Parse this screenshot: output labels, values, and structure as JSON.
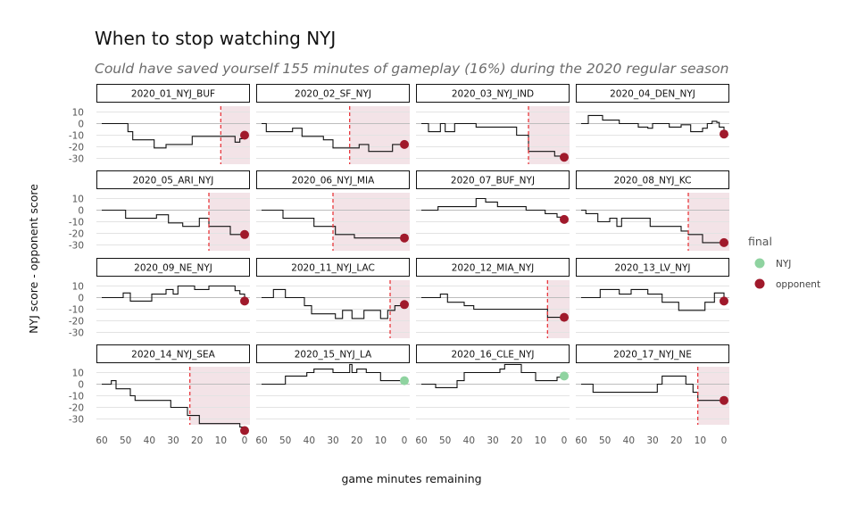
{
  "chart_data": {
    "type": "line",
    "title": "When to stop watching NYJ",
    "subtitle": "Could have saved yourself 155 minutes of gameplay (16%) during the 2020 regular season",
    "xlabel": "game minutes remaining",
    "ylabel": "NYJ score - opponent score",
    "xlim": [
      60,
      0
    ],
    "ylim": [
      -35,
      15
    ],
    "x_ticks": [
      60,
      50,
      40,
      30,
      20,
      10,
      0
    ],
    "x_tick_labels": [
      "60",
      "50",
      "40",
      "30",
      "20",
      "10",
      "0"
    ],
    "y_ticks": [
      10,
      0,
      -10,
      -20,
      -30
    ],
    "y_tick_labels": [
      "10",
      "0",
      "-10",
      "-20",
      "-30"
    ],
    "grid": true,
    "legend": {
      "title": "final",
      "position": "right",
      "entries": [
        {
          "label": "NYJ",
          "color": "#8fd3a0"
        },
        {
          "label": "opponent",
          "color": "#a0192b"
        }
      ]
    },
    "colors": {
      "line": "#111111",
      "cutoff_line": "#e8383d",
      "shade": "#f3e3e7",
      "nyj": "#8fd3a0",
      "opponent": "#a0192b"
    },
    "panels": [
      {
        "label": "2020_01_NYJ_BUF",
        "final": "opponent",
        "cutoff": 10,
        "steps": [
          [
            60,
            0
          ],
          [
            51,
            0
          ],
          [
            49,
            -7
          ],
          [
            47,
            -14
          ],
          [
            38,
            -21
          ],
          [
            33,
            -18
          ],
          [
            23,
            -18
          ],
          [
            22,
            -11
          ],
          [
            11,
            -11
          ],
          [
            5,
            -11
          ],
          [
            4,
            -16
          ],
          [
            2,
            -13
          ],
          [
            0,
            -10
          ]
        ]
      },
      {
        "label": "2020_02_SF_NYJ",
        "final": "opponent",
        "cutoff": 23,
        "steps": [
          [
            60,
            0
          ],
          [
            58,
            -7
          ],
          [
            47,
            -4
          ],
          [
            43,
            -11
          ],
          [
            34,
            -14
          ],
          [
            30,
            -21
          ],
          [
            23,
            -21
          ],
          [
            19,
            -18
          ],
          [
            15,
            -24
          ],
          [
            8,
            -24
          ],
          [
            5,
            -18
          ],
          [
            0,
            -18
          ]
        ]
      },
      {
        "label": "2020_03_NYJ_IND",
        "final": "opponent",
        "cutoff": 15,
        "steps": [
          [
            60,
            0
          ],
          [
            57,
            -7
          ],
          [
            52,
            0
          ],
          [
            50,
            -7
          ],
          [
            47,
            -7
          ],
          [
            46,
            0
          ],
          [
            37,
            -3
          ],
          [
            33,
            -3
          ],
          [
            30,
            -3
          ],
          [
            22,
            -3
          ],
          [
            20,
            -10
          ],
          [
            16,
            -10
          ],
          [
            15,
            -24
          ],
          [
            7,
            -24
          ],
          [
            4,
            -28
          ],
          [
            0,
            -29
          ]
        ]
      },
      {
        "label": "2020_04_DEN_NYJ",
        "final": "opponent",
        "cutoff": null,
        "steps": [
          [
            60,
            0
          ],
          [
            57,
            7
          ],
          [
            51,
            3
          ],
          [
            46,
            3
          ],
          [
            44,
            0
          ],
          [
            36,
            -3
          ],
          [
            34,
            -3
          ],
          [
            32,
            -4
          ],
          [
            30,
            0
          ],
          [
            23,
            -3
          ],
          [
            20,
            -3
          ],
          [
            18,
            -1
          ],
          [
            14,
            -7
          ],
          [
            11,
            -7
          ],
          [
            9,
            -4
          ],
          [
            7,
            0
          ],
          [
            5,
            2
          ],
          [
            3,
            1
          ],
          [
            2,
            -3
          ],
          [
            0,
            -9
          ]
        ]
      },
      {
        "label": "2020_05_ARI_NYJ",
        "final": "opponent",
        "cutoff": 15,
        "steps": [
          [
            60,
            0
          ],
          [
            52,
            0
          ],
          [
            50,
            -7
          ],
          [
            37,
            -4
          ],
          [
            34,
            -4
          ],
          [
            32,
            -11
          ],
          [
            26,
            -14
          ],
          [
            20,
            -14
          ],
          [
            19,
            -7
          ],
          [
            17,
            -7
          ],
          [
            15,
            -14
          ],
          [
            10,
            -14
          ],
          [
            6,
            -21
          ],
          [
            0,
            -21
          ]
        ]
      },
      {
        "label": "2020_06_NYJ_MIA",
        "final": "opponent",
        "cutoff": 30,
        "steps": [
          [
            60,
            0
          ],
          [
            53,
            0
          ],
          [
            51,
            -7
          ],
          [
            40,
            -7
          ],
          [
            38,
            -14
          ],
          [
            30,
            -14
          ],
          [
            29,
            -21
          ],
          [
            22,
            -21
          ],
          [
            21,
            -24
          ],
          [
            0,
            -24
          ]
        ]
      },
      {
        "label": "2020_07_BUF_NYJ",
        "final": "opponent",
        "cutoff": null,
        "steps": [
          [
            60,
            0
          ],
          [
            55,
            0
          ],
          [
            53,
            3
          ],
          [
            38,
            3
          ],
          [
            37,
            10
          ],
          [
            34,
            10
          ],
          [
            33,
            7
          ],
          [
            30,
            7
          ],
          [
            28,
            3
          ],
          [
            22,
            3
          ],
          [
            18,
            3
          ],
          [
            16,
            0
          ],
          [
            10,
            0
          ],
          [
            8,
            -3
          ],
          [
            5,
            -3
          ],
          [
            3,
            -6
          ],
          [
            0,
            -8
          ]
        ]
      },
      {
        "label": "2020_08_NYJ_KC",
        "final": "opponent",
        "cutoff": 15,
        "steps": [
          [
            60,
            0
          ],
          [
            58,
            -3
          ],
          [
            55,
            -3
          ],
          [
            53,
            -10
          ],
          [
            49,
            -10
          ],
          [
            48,
            -7
          ],
          [
            45,
            -14
          ],
          [
            43,
            -7
          ],
          [
            33,
            -7
          ],
          [
            31,
            -14
          ],
          [
            23,
            -14
          ],
          [
            18,
            -18
          ],
          [
            15,
            -21
          ],
          [
            11,
            -21
          ],
          [
            9,
            -28
          ],
          [
            0,
            -28
          ]
        ]
      },
      {
        "label": "2020_09_NE_NYJ",
        "final": "opponent",
        "cutoff": null,
        "steps": [
          [
            60,
            0
          ],
          [
            53,
            0
          ],
          [
            51,
            4
          ],
          [
            49,
            4
          ],
          [
            48,
            -3
          ],
          [
            41,
            -3
          ],
          [
            39,
            3
          ],
          [
            34,
            3
          ],
          [
            33,
            7
          ],
          [
            31,
            7
          ],
          [
            30,
            3
          ],
          [
            28,
            10
          ],
          [
            23,
            10
          ],
          [
            21,
            7
          ],
          [
            16,
            7
          ],
          [
            15,
            10
          ],
          [
            6,
            10
          ],
          [
            4,
            6
          ],
          [
            2,
            3
          ],
          [
            0,
            -3
          ]
        ]
      },
      {
        "label": "2020_11_NYJ_LAC",
        "final": "opponent",
        "cutoff": 6,
        "steps": [
          [
            60,
            0
          ],
          [
            55,
            7
          ],
          [
            52,
            7
          ],
          [
            50,
            0
          ],
          [
            44,
            0
          ],
          [
            42,
            -7
          ],
          [
            41,
            -7
          ],
          [
            39,
            -14
          ],
          [
            31,
            -14
          ],
          [
            29,
            -18
          ],
          [
            27,
            -18
          ],
          [
            26,
            -11
          ],
          [
            23,
            -11
          ],
          [
            22,
            -18
          ],
          [
            18,
            -18
          ],
          [
            17,
            -11
          ],
          [
            11,
            -11
          ],
          [
            10,
            -18
          ],
          [
            8,
            -18
          ],
          [
            7,
            -11
          ],
          [
            5,
            -11
          ],
          [
            4,
            -7
          ],
          [
            0,
            -6
          ]
        ]
      },
      {
        "label": "2020_12_MIA_NYJ",
        "final": "opponent",
        "cutoff": 7,
        "steps": [
          [
            60,
            0
          ],
          [
            53,
            0
          ],
          [
            52,
            3
          ],
          [
            50,
            3
          ],
          [
            49,
            -4
          ],
          [
            44,
            -4
          ],
          [
            42,
            -7
          ],
          [
            38,
            -10
          ],
          [
            31,
            -10
          ],
          [
            28,
            -10
          ],
          [
            18,
            -10
          ],
          [
            15,
            -10
          ],
          [
            8,
            -10
          ],
          [
            7,
            -17
          ],
          [
            0,
            -17
          ]
        ]
      },
      {
        "label": "2020_13_LV_NYJ",
        "final": "opponent",
        "cutoff": null,
        "steps": [
          [
            60,
            0
          ],
          [
            54,
            0
          ],
          [
            52,
            7
          ],
          [
            45,
            7
          ],
          [
            44,
            3
          ],
          [
            40,
            3
          ],
          [
            39,
            7
          ],
          [
            33,
            7
          ],
          [
            32,
            3
          ],
          [
            27,
            3
          ],
          [
            26,
            -4
          ],
          [
            20,
            -4
          ],
          [
            19,
            -11
          ],
          [
            9,
            -11
          ],
          [
            8,
            -4
          ],
          [
            5,
            -4
          ],
          [
            4,
            4
          ],
          [
            1,
            4
          ],
          [
            0,
            -3
          ]
        ]
      },
      {
        "label": "2020_14_NYJ_SEA",
        "final": "opponent",
        "cutoff": 23,
        "steps": [
          [
            60,
            0
          ],
          [
            57,
            0
          ],
          [
            56,
            3
          ],
          [
            54,
            -4
          ],
          [
            50,
            -4
          ],
          [
            48,
            -10
          ],
          [
            46,
            -14
          ],
          [
            33,
            -14
          ],
          [
            31,
            -20
          ],
          [
            27,
            -20
          ],
          [
            24,
            -27
          ],
          [
            21,
            -27
          ],
          [
            19,
            -34
          ],
          [
            8,
            -34
          ],
          [
            2,
            -37
          ],
          [
            0,
            -40
          ]
        ]
      },
      {
        "label": "2020_15_NYJ_LA",
        "final": "NYJ",
        "cutoff": null,
        "steps": [
          [
            60,
            0
          ],
          [
            52,
            0
          ],
          [
            50,
            7
          ],
          [
            43,
            7
          ],
          [
            41,
            10
          ],
          [
            38,
            13
          ],
          [
            32,
            13
          ],
          [
            30,
            10
          ],
          [
            24,
            10
          ],
          [
            23,
            17
          ],
          [
            22,
            10
          ],
          [
            20,
            13
          ],
          [
            17,
            13
          ],
          [
            16,
            10
          ],
          [
            12,
            10
          ],
          [
            10,
            3
          ],
          [
            0,
            3
          ]
        ]
      },
      {
        "label": "2020_16_CLE_NYJ",
        "final": "NYJ",
        "cutoff": null,
        "steps": [
          [
            60,
            0
          ],
          [
            55,
            0
          ],
          [
            54,
            -3
          ],
          [
            47,
            -3
          ],
          [
            45,
            3
          ],
          [
            42,
            10
          ],
          [
            28,
            10
          ],
          [
            27,
            13
          ],
          [
            25,
            17
          ],
          [
            20,
            17
          ],
          [
            18,
            10
          ],
          [
            14,
            10
          ],
          [
            12,
            3
          ],
          [
            5,
            3
          ],
          [
            3,
            6
          ],
          [
            0,
            7
          ]
        ]
      },
      {
        "label": "2020_17_NYJ_NE",
        "final": "opponent",
        "cutoff": 11,
        "steps": [
          [
            60,
            0
          ],
          [
            56,
            0
          ],
          [
            55,
            -7
          ],
          [
            30,
            -7
          ],
          [
            28,
            0
          ],
          [
            26,
            7
          ],
          [
            20,
            7
          ],
          [
            16,
            0
          ],
          [
            13,
            -7
          ],
          [
            12,
            -7
          ],
          [
            11,
            -14
          ],
          [
            0,
            -14
          ]
        ]
      }
    ]
  }
}
